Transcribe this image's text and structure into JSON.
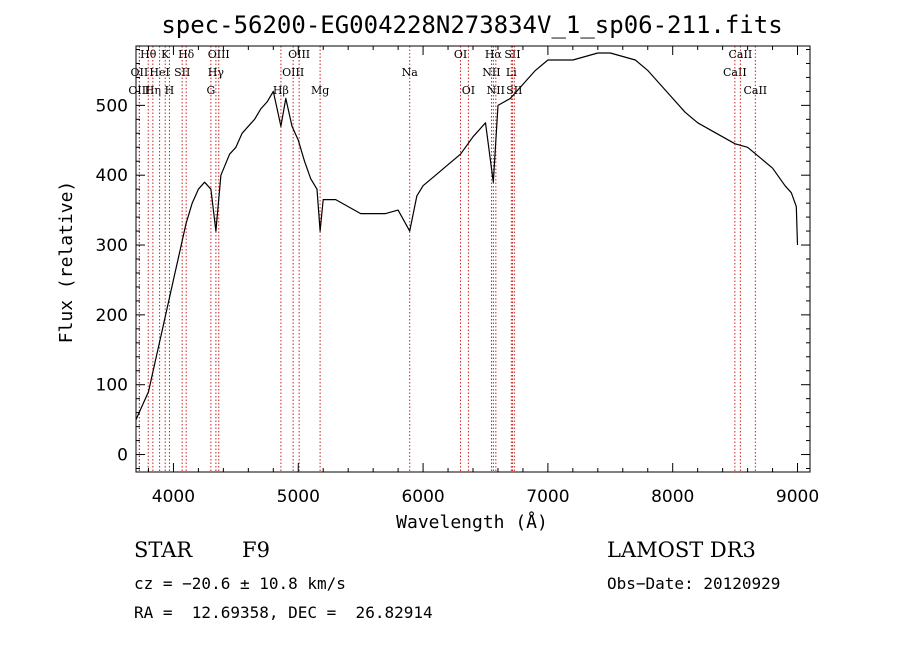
{
  "chart_data": {
    "type": "line",
    "title": "spec-56200-EG004228N273834V_1_sp06-211.fits",
    "xlabel": "Wavelength (Å)",
    "ylabel": "Flux (relative)",
    "xlim": [
      3700,
      9100
    ],
    "ylim": [
      -25,
      585
    ],
    "xticks": [
      4000,
      5000,
      6000,
      7000,
      8000,
      9000
    ],
    "yticks": [
      0,
      100,
      200,
      300,
      400,
      500
    ],
    "x_minor_step": 200,
    "y_minor_step": 20,
    "grid": false,
    "line_color": "#000000",
    "marker_color": "#cc2222",
    "series": [
      {
        "x": [
          3700,
          3750,
          3800,
          3850,
          3900,
          3950,
          4000,
          4050,
          4100,
          4150,
          4200,
          4250,
          4300,
          4340,
          4380,
          4450,
          4500,
          4550,
          4600,
          4650,
          4700,
          4750,
          4800,
          4861,
          4900,
          4950,
          5000,
          5050,
          5100,
          5150,
          5175,
          5200,
          5300,
          5400,
          5500,
          5600,
          5700,
          5800,
          5893,
          5950,
          6000,
          6100,
          6200,
          6300,
          6400,
          6500,
          6563,
          6600,
          6700,
          6800,
          6900,
          7000,
          7100,
          7200,
          7300,
          7400,
          7500,
          7600,
          7700,
          7800,
          7900,
          8000,
          8100,
          8200,
          8300,
          8400,
          8500,
          8600,
          8700,
          8800,
          8900,
          8950,
          8990,
          9000
        ],
        "y": [
          50,
          70,
          90,
          130,
          170,
          210,
          250,
          290,
          330,
          360,
          380,
          390,
          380,
          320,
          400,
          430,
          440,
          460,
          470,
          480,
          495,
          505,
          520,
          470,
          510,
          470,
          450,
          420,
          395,
          380,
          320,
          365,
          365,
          355,
          345,
          345,
          345,
          350,
          320,
          370,
          385,
          400,
          415,
          430,
          455,
          475,
          390,
          500,
          510,
          530,
          550,
          565,
          565,
          565,
          570,
          575,
          575,
          570,
          565,
          550,
          530,
          510,
          490,
          475,
          465,
          455,
          445,
          440,
          425,
          410,
          385,
          375,
          355,
          300
        ]
      }
    ],
    "markers": [
      {
        "label": "OII",
        "wl": 3727,
        "row": 2
      },
      {
        "label": "OIII",
        "wl": 3727,
        "row": 3
      },
      {
        "label": "Hθ",
        "wl": 3798,
        "row": 1
      },
      {
        "label": "Hη",
        "wl": 3835,
        "row": 3
      },
      {
        "label": "HeI",
        "wl": 3889,
        "row": 2
      },
      {
        "label": "K",
        "wl": 3934,
        "row": 1
      },
      {
        "label": "H",
        "wl": 3968,
        "row": 3
      },
      {
        "label": "SII",
        "wl": 4070,
        "row": 2
      },
      {
        "label": "Hδ",
        "wl": 4102,
        "row": 1
      },
      {
        "label": "G",
        "wl": 4300,
        "row": 3
      },
      {
        "label": "Hγ",
        "wl": 4340,
        "row": 2
      },
      {
        "label": "OIII",
        "wl": 4363,
        "row": 1
      },
      {
        "label": "Hβ",
        "wl": 4861,
        "row": 3
      },
      {
        "label": "OIII",
        "wl": 4959,
        "row": 2
      },
      {
        "label": "OIII",
        "wl": 5007,
        "row": 1
      },
      {
        "label": "Mg",
        "wl": 5175,
        "row": 3
      },
      {
        "label": "Na",
        "wl": 5893,
        "row": 2
      },
      {
        "label": "OI",
        "wl": 6300,
        "row": 1
      },
      {
        "label": "OI",
        "wl": 6363,
        "row": 3
      },
      {
        "label": "NII",
        "wl": 6548,
        "row": 2
      },
      {
        "label": "Hα",
        "wl": 6563,
        "row": 1
      },
      {
        "label": "NII",
        "wl": 6583,
        "row": 3
      },
      {
        "label": "Li",
        "wl": 6707,
        "row": 2
      },
      {
        "label": "SII",
        "wl": 6716,
        "row": 1
      },
      {
        "label": "SII",
        "wl": 6731,
        "row": 3
      },
      {
        "label": "CaII",
        "wl": 8498,
        "row": 2
      },
      {
        "label": "CaII",
        "wl": 8542,
        "row": 1
      },
      {
        "label": "CaII",
        "wl": 8662,
        "row": 3
      }
    ]
  },
  "footer": {
    "class_label": "STAR",
    "subclass": "F9",
    "survey": "LAMOST DR3",
    "cz": "cz = −20.6 ± 10.8 km/s",
    "obs_date": "Obs−Date: 20120929",
    "radec": "RA =  12.69358, DEC =  26.82914"
  }
}
